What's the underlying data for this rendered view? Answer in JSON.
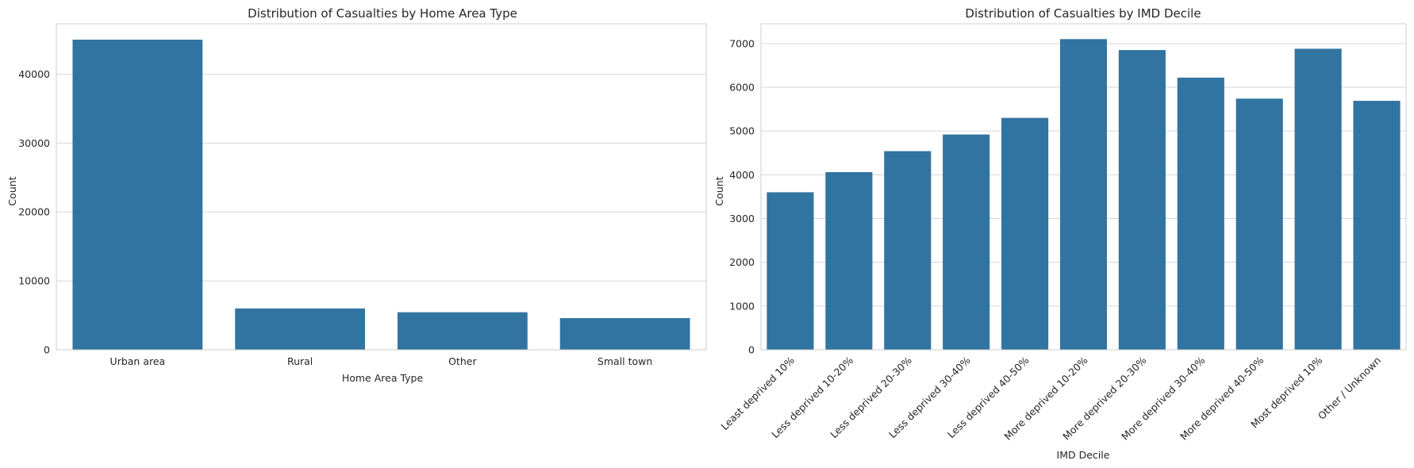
{
  "chart_data": [
    {
      "type": "bar",
      "title": "Distribution of Casualties by Home Area Type",
      "xlabel": "Home Area Type",
      "ylabel": "Count",
      "categories": [
        "Urban area",
        "Rural",
        "Other",
        "Small town"
      ],
      "values": [
        45000,
        6000,
        5450,
        4600
      ],
      "ylim": [
        0,
        47300
      ],
      "yticks": [
        0,
        10000,
        20000,
        30000,
        40000
      ],
      "grid": true,
      "color": "#3274a1",
      "xtick_rotation": 0
    },
    {
      "type": "bar",
      "title": "Distribution of Casualties by IMD Decile",
      "xlabel": "IMD Decile",
      "ylabel": "Count",
      "categories": [
        "Least deprived 10%",
        "Less deprived 10-20%",
        "Less deprived 20-30%",
        "Less deprived 30-40%",
        "Less deprived 40-50%",
        "More deprived 10-20%",
        "More deprived 20-30%",
        "More deprived 30-40%",
        "More deprived 40-50%",
        "Most deprived 10%",
        "Other / Unknown"
      ],
      "values": [
        3600,
        4060,
        4540,
        4920,
        5300,
        7100,
        6850,
        6220,
        5740,
        6880,
        5690
      ],
      "ylim": [
        0,
        7450
      ],
      "yticks": [
        0,
        1000,
        2000,
        3000,
        4000,
        5000,
        6000,
        7000
      ],
      "grid": true,
      "color": "#3274a1",
      "xtick_rotation": -45
    }
  ]
}
